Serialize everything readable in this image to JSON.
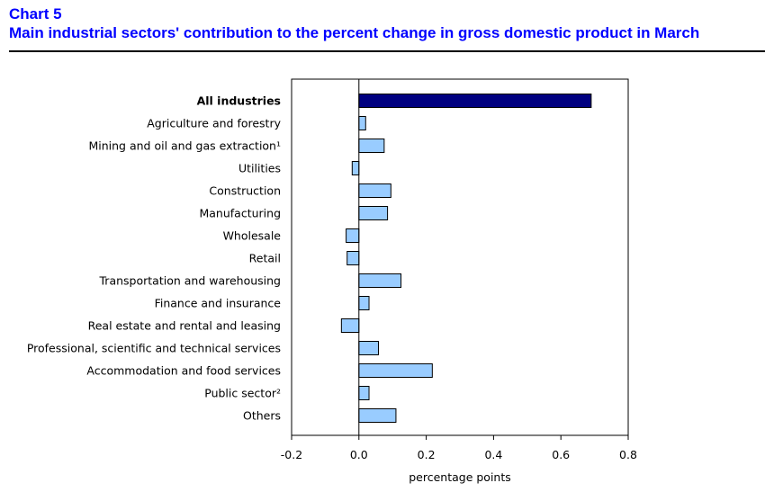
{
  "header": {
    "chart_number": "Chart 5",
    "title": "Main industrial sectors' contribution to the percent change in gross domestic product in March"
  },
  "chart_data": {
    "type": "bar",
    "orientation": "horizontal",
    "categories": [
      "All industries",
      "Agriculture and forestry",
      "Mining and oil and gas extraction¹",
      "Utilities",
      "Construction",
      "Manufacturing",
      "Wholesale",
      "Retail",
      "Transportation and warehousing",
      "Finance and insurance",
      "Real estate and rental and leasing",
      "Professional, scientific and technical services",
      "Accommodation and food services",
      "Public sector²",
      "Others"
    ],
    "values": [
      0.69,
      0.02,
      0.075,
      -0.02,
      0.095,
      0.085,
      -0.038,
      -0.035,
      0.125,
      0.03,
      -0.052,
      0.058,
      0.218,
      0.03,
      0.11
    ],
    "highlight_index": 0,
    "xlim": [
      -0.2,
      0.8
    ],
    "xticks": [
      "-0.2",
      "0.0",
      "0.2",
      "0.4",
      "0.6",
      "0.8"
    ],
    "xlabel": "percentage points",
    "ylabel": "",
    "grid": false,
    "colors": {
      "highlight": "#000080",
      "bar": "#99ccff",
      "outline": "#000000"
    }
  }
}
